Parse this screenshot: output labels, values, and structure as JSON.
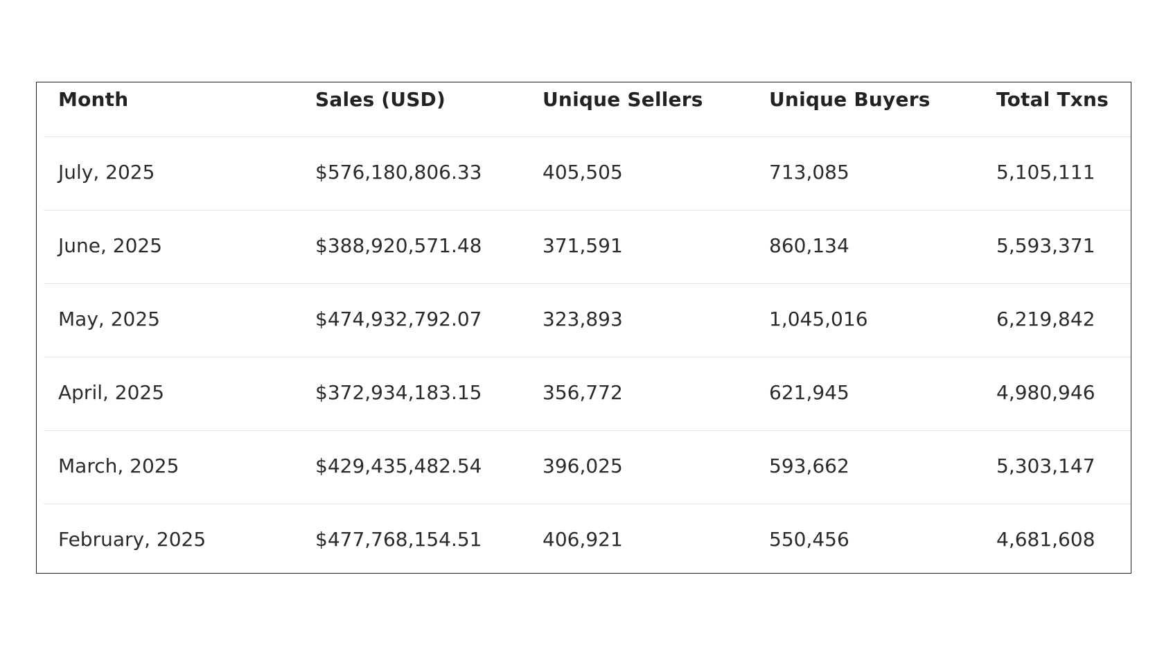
{
  "table": {
    "headers": [
      "Month",
      "Sales (USD)",
      "Unique Sellers",
      "Unique Buyers",
      "Total Txns"
    ],
    "rows": [
      [
        "July, 2025",
        "$576,180,806.33",
        "405,505",
        "713,085",
        "5,105,111"
      ],
      [
        "June, 2025",
        "$388,920,571.48",
        "371,591",
        "860,134",
        "5,593,371"
      ],
      [
        "May, 2025",
        "$474,932,792.07",
        "323,893",
        "1,045,016",
        "6,219,842"
      ],
      [
        "April, 2025",
        "$372,934,183.15",
        "356,772",
        "621,945",
        "4,980,946"
      ],
      [
        "March, 2025",
        "$429,435,482.54",
        "396,025",
        "593,662",
        "5,303,147"
      ],
      [
        "February, 2025",
        "$477,768,154.51",
        "406,921",
        "550,456",
        "4,681,608"
      ]
    ]
  }
}
